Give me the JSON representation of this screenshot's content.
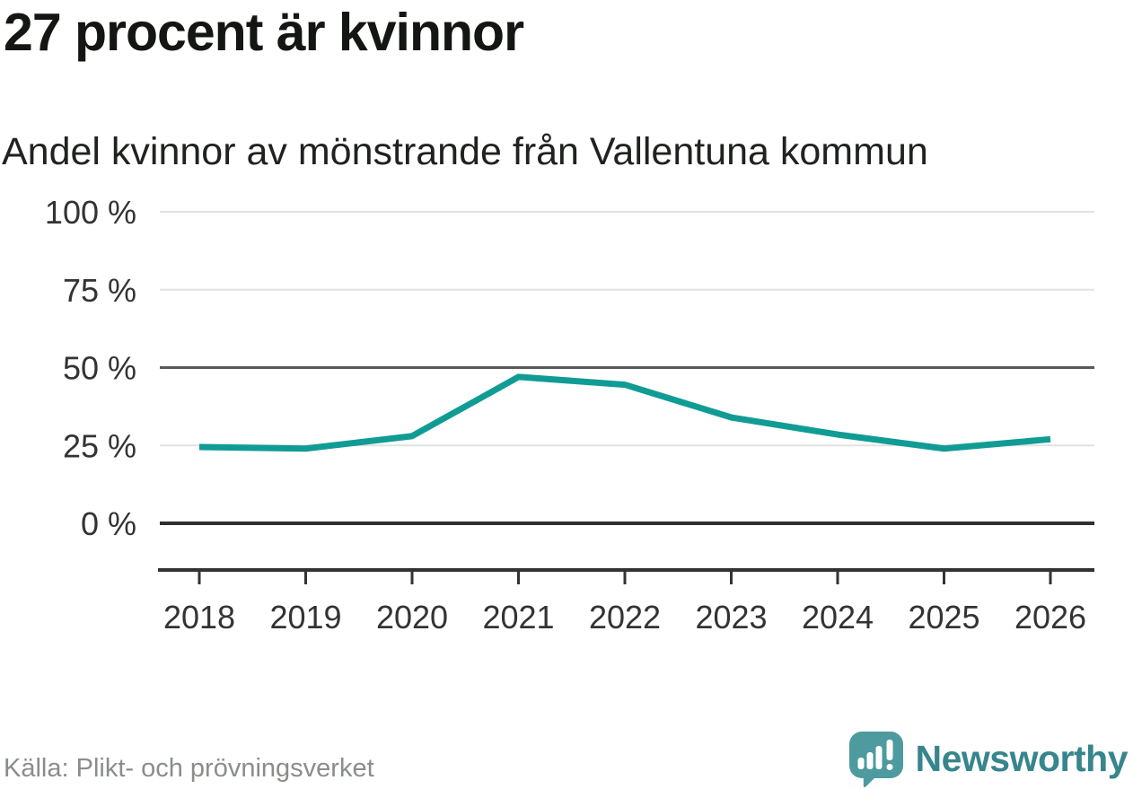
{
  "header": {
    "title": "27 procent är kvinnor",
    "subtitle": "Andel kvinnor av mönstrande från Vallentuna kommun"
  },
  "chart_data": {
    "type": "line",
    "title": "Andel kvinnor av mönstrande från Vallentuna kommun",
    "x": [
      2018,
      2019,
      2020,
      2021,
      2022,
      2023,
      2024,
      2025,
      2026
    ],
    "x_tick_labels": [
      "2018",
      "2019",
      "2020",
      "2021",
      "2022",
      "2023",
      "2024",
      "2025",
      "2026"
    ],
    "series": [
      {
        "name": "Andel kvinnor (%)",
        "values": [
          24.5,
          24,
          28,
          47,
          44.5,
          34,
          28.5,
          24,
          27
        ]
      }
    ],
    "ylim": [
      0,
      100
    ],
    "yticks": [
      0,
      25,
      50,
      75,
      100
    ],
    "y_tick_labels": [
      "0 %",
      "25 %",
      "50 %",
      "75 %",
      "100 %"
    ],
    "grid": "horizontal-only",
    "emphasized_gridline": 50,
    "baseline_gridline": 0,
    "legend": "none",
    "xlabel": "",
    "ylabel": ""
  },
  "colors": {
    "line": "#109c94",
    "gridline_light": "#e2e2e2",
    "gridline_mid": "#595959",
    "gridline_baseline": "#303030",
    "axis": "#333333",
    "tick_label": "#333333",
    "brand_teal_mark": "#4d9b9f",
    "brand_teal_text": "#37858d"
  },
  "footer": {
    "source": "Källa: Plikt- och prövningsverket",
    "brand_name": "Newsworthy"
  },
  "icons": {
    "logo": "newsworthy-speech-bubble-bar-chart-icon"
  }
}
